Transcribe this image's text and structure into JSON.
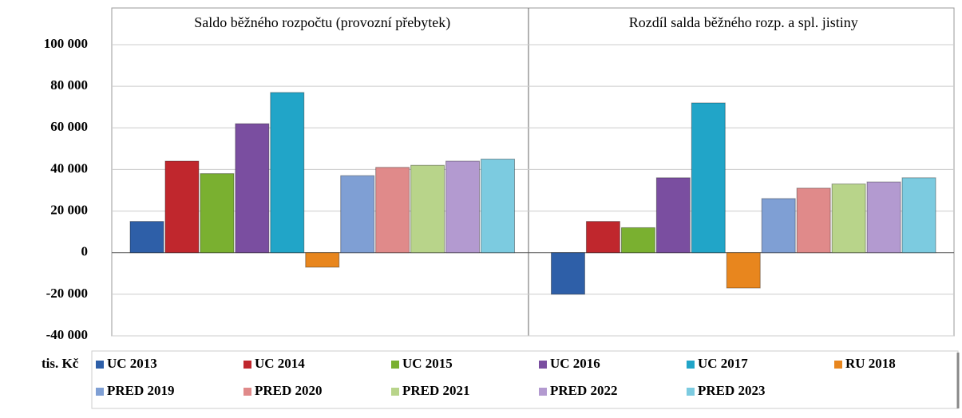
{
  "chart_data": {
    "type": "bar",
    "categories": [
      "Saldo běžného rozpočtu (provozní přebytek)",
      "Rozdíl salda běžného rozp. a spl. jistiny"
    ],
    "y_label": "tis. Kč",
    "ylim": [
      -40000,
      100000
    ],
    "yticks": [
      {
        "value": -40000,
        "label": "-40 000"
      },
      {
        "value": -20000,
        "label": "-20 000"
      },
      0,
      {
        "value": 20000,
        "label": "20 000"
      },
      {
        "value": 40000,
        "label": "40 000"
      },
      {
        "value": 60000,
        "label": "60 000"
      },
      {
        "value": 80000,
        "label": "80 000"
      },
      {
        "value": 100000,
        "label": "100 000"
      }
    ],
    "grid": true,
    "legend": "bottom",
    "series": [
      {
        "name": "UC 2013",
        "color": "#2e5fa8",
        "values": [
          15000,
          -20000
        ]
      },
      {
        "name": "UC 2014",
        "color": "#c0272d",
        "values": [
          44000,
          15000
        ]
      },
      {
        "name": "UC 2015",
        "color": "#7ab030",
        "values": [
          38000,
          12000
        ]
      },
      {
        "name": "UC 2016",
        "color": "#7a4ea0",
        "values": [
          62000,
          36000
        ]
      },
      {
        "name": "UC 2017",
        "color": "#21a5c8",
        "values": [
          77000,
          72000
        ]
      },
      {
        "name": "RU 2018",
        "color": "#e8861e",
        "values": [
          -7000,
          -17000
        ]
      },
      {
        "name": "PRED 2019",
        "color": "#7f9fd4",
        "values": [
          37000,
          26000
        ]
      },
      {
        "name": "PRED 2020",
        "color": "#e08a8a",
        "values": [
          41000,
          31000
        ]
      },
      {
        "name": "PRED 2021",
        "color": "#b8d48a",
        "values": [
          42000,
          33000
        ]
      },
      {
        "name": "PRED 2022",
        "color": "#b39ad0",
        "values": [
          44000,
          34000
        ]
      },
      {
        "name": "PRED 2023",
        "color": "#7ccbe0",
        "values": [
          45000,
          36000
        ]
      }
    ]
  }
}
